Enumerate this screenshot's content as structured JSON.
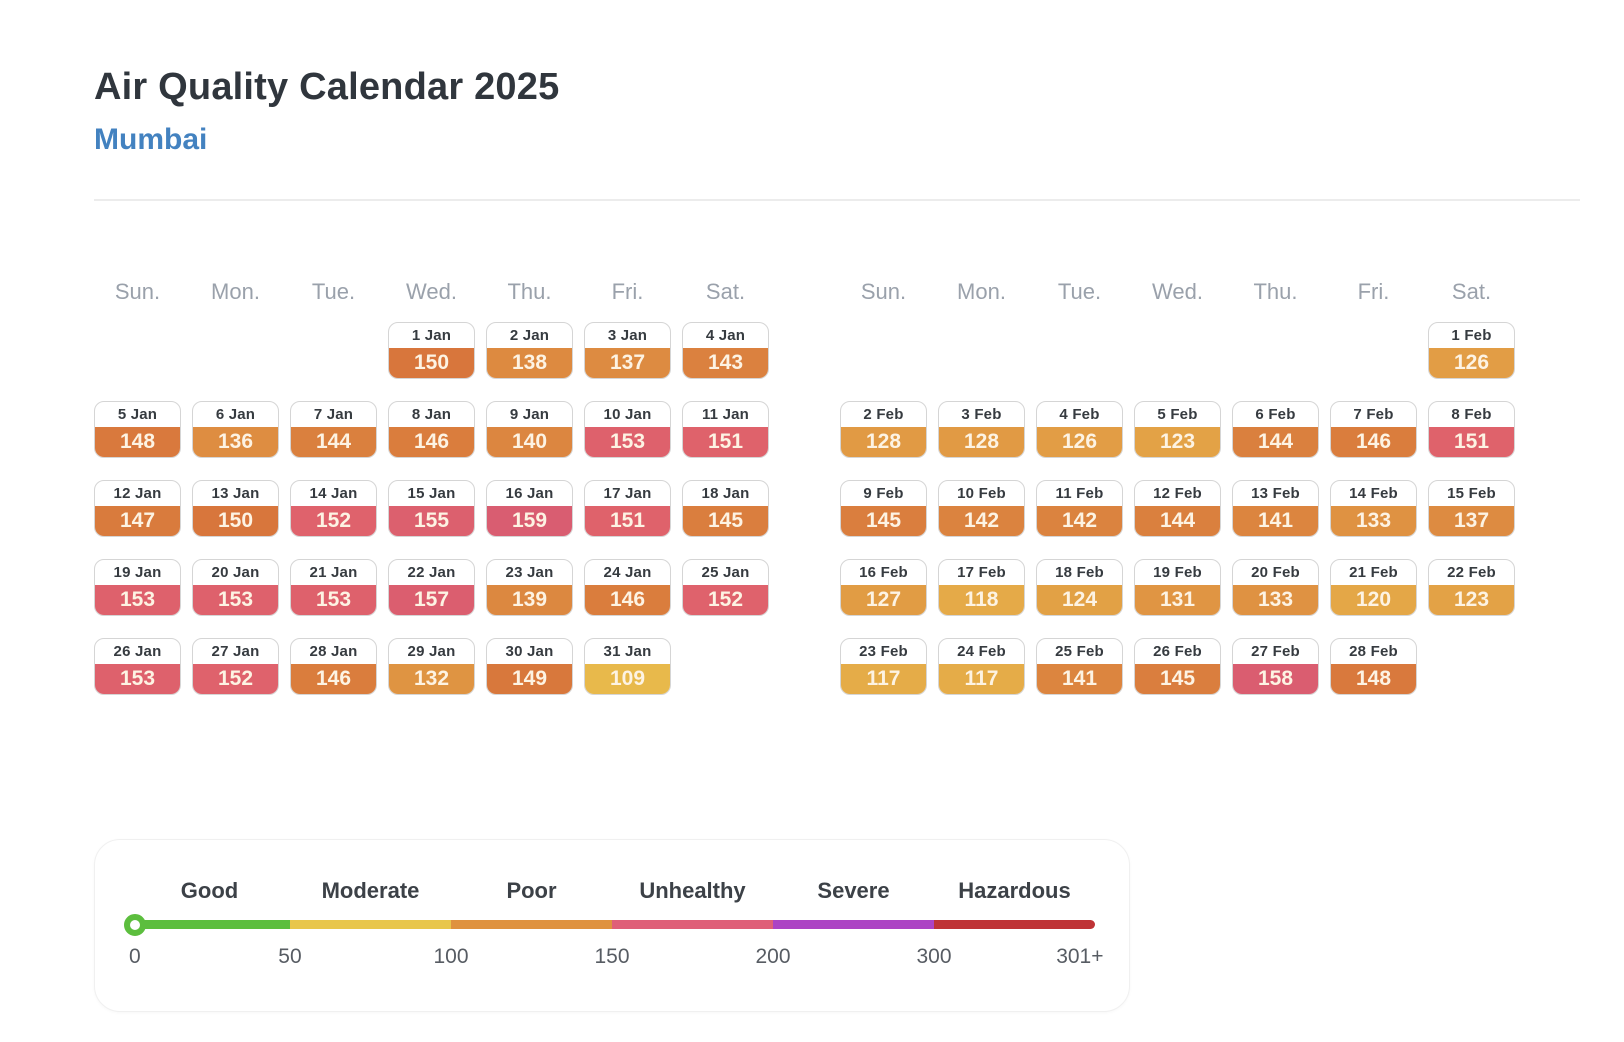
{
  "header": {
    "title": "Air Quality Calendar 2025",
    "subtitle": "Mumbai"
  },
  "chart_data": {
    "type": "heatmap",
    "title": "Air Quality Calendar 2025",
    "location": "Mumbai",
    "weekdays": [
      "Sun.",
      "Mon.",
      "Tue.",
      "Wed.",
      "Thu.",
      "Fri.",
      "Sat."
    ],
    "months": [
      {
        "label": "Jan",
        "first_day_column": 3,
        "days": [
          {
            "date": "1 Jan",
            "aqi": 150
          },
          {
            "date": "2 Jan",
            "aqi": 138
          },
          {
            "date": "3 Jan",
            "aqi": 137
          },
          {
            "date": "4 Jan",
            "aqi": 143
          },
          {
            "date": "5 Jan",
            "aqi": 148
          },
          {
            "date": "6 Jan",
            "aqi": 136
          },
          {
            "date": "7 Jan",
            "aqi": 144
          },
          {
            "date": "8 Jan",
            "aqi": 146
          },
          {
            "date": "9 Jan",
            "aqi": 140
          },
          {
            "date": "10 Jan",
            "aqi": 153
          },
          {
            "date": "11 Jan",
            "aqi": 151
          },
          {
            "date": "12 Jan",
            "aqi": 147
          },
          {
            "date": "13 Jan",
            "aqi": 150
          },
          {
            "date": "14 Jan",
            "aqi": 152
          },
          {
            "date": "15 Jan",
            "aqi": 155
          },
          {
            "date": "16 Jan",
            "aqi": 159
          },
          {
            "date": "17 Jan",
            "aqi": 151
          },
          {
            "date": "18 Jan",
            "aqi": 145
          },
          {
            "date": "19 Jan",
            "aqi": 153
          },
          {
            "date": "20 Jan",
            "aqi": 153
          },
          {
            "date": "21 Jan",
            "aqi": 153
          },
          {
            "date": "22 Jan",
            "aqi": 157
          },
          {
            "date": "23 Jan",
            "aqi": 139
          },
          {
            "date": "24 Jan",
            "aqi": 146
          },
          {
            "date": "25 Jan",
            "aqi": 152
          },
          {
            "date": "26 Jan",
            "aqi": 153
          },
          {
            "date": "27 Jan",
            "aqi": 152
          },
          {
            "date": "28 Jan",
            "aqi": 146
          },
          {
            "date": "29 Jan",
            "aqi": 132
          },
          {
            "date": "30 Jan",
            "aqi": 149
          },
          {
            "date": "31 Jan",
            "aqi": 109
          }
        ]
      },
      {
        "label": "Feb",
        "first_day_column": 6,
        "days": [
          {
            "date": "1 Feb",
            "aqi": 126
          },
          {
            "date": "2 Feb",
            "aqi": 128
          },
          {
            "date": "3 Feb",
            "aqi": 128
          },
          {
            "date": "4 Feb",
            "aqi": 126
          },
          {
            "date": "5 Feb",
            "aqi": 123
          },
          {
            "date": "6 Feb",
            "aqi": 144
          },
          {
            "date": "7 Feb",
            "aqi": 146
          },
          {
            "date": "8 Feb",
            "aqi": 151
          },
          {
            "date": "9 Feb",
            "aqi": 145
          },
          {
            "date": "10 Feb",
            "aqi": 142
          },
          {
            "date": "11 Feb",
            "aqi": 142
          },
          {
            "date": "12 Feb",
            "aqi": 144
          },
          {
            "date": "13 Feb",
            "aqi": 141
          },
          {
            "date": "14 Feb",
            "aqi": 133
          },
          {
            "date": "15 Feb",
            "aqi": 137
          },
          {
            "date": "16 Feb",
            "aqi": 127
          },
          {
            "date": "17 Feb",
            "aqi": 118
          },
          {
            "date": "18 Feb",
            "aqi": 124
          },
          {
            "date": "19 Feb",
            "aqi": 131
          },
          {
            "date": "20 Feb",
            "aqi": 133
          },
          {
            "date": "21 Feb",
            "aqi": 120
          },
          {
            "date": "22 Feb",
            "aqi": 123
          },
          {
            "date": "23 Feb",
            "aqi": 117
          },
          {
            "date": "24 Feb",
            "aqi": 117
          },
          {
            "date": "25 Feb",
            "aqi": 141
          },
          {
            "date": "26 Feb",
            "aqi": 145
          },
          {
            "date": "27 Feb",
            "aqi": 158
          },
          {
            "date": "28 Feb",
            "aqi": 148
          }
        ]
      }
    ]
  },
  "legend": {
    "categories": [
      {
        "label": "Good",
        "color": "#5cbe3e"
      },
      {
        "label": "Moderate",
        "color": "#e8c64b"
      },
      {
        "label": "Poor",
        "color": "#df923f"
      },
      {
        "label": "Unhealthy",
        "color": "#df5f78"
      },
      {
        "label": "Severe",
        "color": "#ac43c4"
      },
      {
        "label": "Hazardous",
        "color": "#bf3336"
      }
    ],
    "ticks": [
      "0",
      "50",
      "100",
      "150",
      "200",
      "300",
      "301+"
    ],
    "knob_color": "#5cbe3e"
  },
  "colors": {
    "title_text": "#30363d",
    "subtitle_text": "#4382c0",
    "weekday_text": "#9aa1ab",
    "cell_value_text": "#fdf3e3",
    "cell_gradient": {
      "poor_low": "#ecc84e",
      "poor_high": "#d8763c",
      "unhealthy_low": "#e0636a",
      "unhealthy_high": "#bb4090"
    }
  }
}
